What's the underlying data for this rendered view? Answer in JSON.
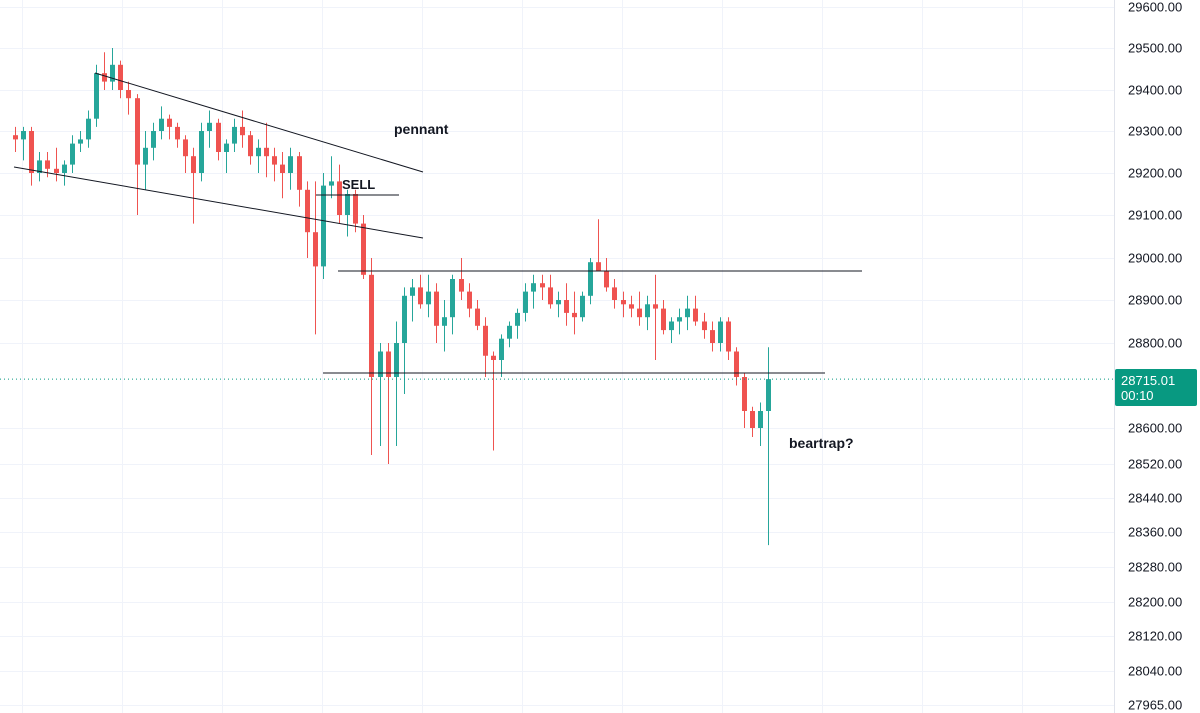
{
  "chart_data": {
    "type": "candlestick",
    "ylim": [
      27965,
      29600
    ],
    "y_ticks": [
      "29600.00",
      "29500.00",
      "29400.00",
      "29300.00",
      "29200.00",
      "29100.00",
      "29000.00",
      "28900.00",
      "28800.00",
      "28600.00",
      "28520.00",
      "28440.00",
      "28360.00",
      "28280.00",
      "28200.00",
      "28120.00",
      "28040.00",
      "27965.00"
    ],
    "grid": true,
    "colors": {
      "up": "#26a69a",
      "down": "#ef5350",
      "grid": "#f0f3fa",
      "axis_border": "#e0e3eb",
      "line": "#131722",
      "current_price": "#089981"
    },
    "current_price": {
      "value": 28715.01,
      "label": "28715.01",
      "countdown": "00:10"
    },
    "candles": [
      [
        29290,
        29310,
        29250,
        29280
      ],
      [
        29280,
        29310,
        29230,
        29300
      ],
      [
        29300,
        29310,
        29170,
        29200
      ],
      [
        29200,
        29250,
        29180,
        29230
      ],
      [
        29230,
        29250,
        29190,
        29210
      ],
      [
        29210,
        29260,
        29180,
        29200
      ],
      [
        29200,
        29230,
        29170,
        29220
      ],
      [
        29220,
        29290,
        29200,
        29270
      ],
      [
        29270,
        29300,
        29250,
        29280
      ],
      [
        29280,
        29350,
        29260,
        29330
      ],
      [
        29330,
        29460,
        29310,
        29440
      ],
      [
        29440,
        29490,
        29400,
        29420
      ],
      [
        29420,
        29500,
        29400,
        29460
      ],
      [
        29460,
        29470,
        29380,
        29400
      ],
      [
        29400,
        29420,
        29340,
        29380
      ],
      [
        29380,
        29390,
        29100,
        29220
      ],
      [
        29220,
        29300,
        29160,
        29260
      ],
      [
        29260,
        29320,
        29230,
        29300
      ],
      [
        29300,
        29360,
        29280,
        29330
      ],
      [
        29330,
        29340,
        29280,
        29310
      ],
      [
        29310,
        29320,
        29260,
        29280
      ],
      [
        29280,
        29290,
        29200,
        29240
      ],
      [
        29240,
        29260,
        29080,
        29200
      ],
      [
        29200,
        29320,
        29180,
        29300
      ],
      [
        29300,
        29350,
        29260,
        29320
      ],
      [
        29320,
        29330,
        29230,
        29250
      ],
      [
        29250,
        29280,
        29200,
        29270
      ],
      [
        29270,
        29330,
        29250,
        29310
      ],
      [
        29310,
        29350,
        29260,
        29290
      ],
      [
        29290,
        29300,
        29220,
        29240
      ],
      [
        29240,
        29280,
        29200,
        29260
      ],
      [
        29260,
        29320,
        29190,
        29240
      ],
      [
        29240,
        29260,
        29180,
        29220
      ],
      [
        29220,
        29250,
        29140,
        29200
      ],
      [
        29200,
        29260,
        29160,
        29240
      ],
      [
        29240,
        29250,
        29120,
        29160
      ],
      [
        29160,
        29180,
        29000,
        29060
      ],
      [
        29060,
        29180,
        28820,
        28980
      ],
      [
        28980,
        29200,
        28950,
        29170
      ],
      [
        29170,
        29240,
        29140,
        29180
      ],
      [
        29180,
        29220,
        29080,
        29100
      ],
      [
        29100,
        29160,
        29050,
        29150
      ],
      [
        29150,
        29160,
        29060,
        29080
      ],
      [
        29080,
        29100,
        28950,
        28960
      ],
      [
        28960,
        29000,
        28540,
        28720
      ],
      [
        28720,
        28800,
        28560,
        28780
      ],
      [
        28780,
        28800,
        28520,
        28720
      ],
      [
        28720,
        28850,
        28560,
        28800
      ],
      [
        28800,
        28930,
        28680,
        28910
      ],
      [
        28910,
        28950,
        28850,
        28930
      ],
      [
        28930,
        28960,
        28880,
        28890
      ],
      [
        28890,
        28960,
        28860,
        28920
      ],
      [
        28920,
        28940,
        28800,
        28840
      ],
      [
        28840,
        28900,
        28780,
        28860
      ],
      [
        28860,
        28960,
        28820,
        28950
      ],
      [
        28950,
        29000,
        28900,
        28920
      ],
      [
        28920,
        28940,
        28860,
        28880
      ],
      [
        28880,
        28900,
        28830,
        28840
      ],
      [
        28840,
        28860,
        28720,
        28770
      ],
      [
        28770,
        28780,
        28550,
        28760
      ],
      [
        28760,
        28820,
        28720,
        28810
      ],
      [
        28810,
        28850,
        28790,
        28840
      ],
      [
        28840,
        28880,
        28810,
        28870
      ],
      [
        28870,
        28940,
        28850,
        28920
      ],
      [
        28920,
        28960,
        28880,
        28940
      ],
      [
        28940,
        28960,
        28900,
        28930
      ],
      [
        28930,
        28960,
        28880,
        28890
      ],
      [
        28890,
        28920,
        28860,
        28900
      ],
      [
        28900,
        28940,
        28840,
        28870
      ],
      [
        28870,
        28920,
        28820,
        28860
      ],
      [
        28860,
        28920,
        28850,
        28910
      ],
      [
        28910,
        29000,
        28890,
        28990
      ],
      [
        28990,
        29090,
        28970,
        28970
      ],
      [
        28970,
        29000,
        28920,
        28930
      ],
      [
        28930,
        28950,
        28880,
        28900
      ],
      [
        28900,
        28920,
        28860,
        28890
      ],
      [
        28890,
        28910,
        28860,
        28880
      ],
      [
        28880,
        28920,
        28840,
        28860
      ],
      [
        28860,
        28910,
        28830,
        28890
      ],
      [
        28890,
        28960,
        28760,
        28880
      ],
      [
        28880,
        28900,
        28820,
        28830
      ],
      [
        28830,
        28860,
        28800,
        28850
      ],
      [
        28850,
        28880,
        28820,
        28860
      ],
      [
        28860,
        28910,
        28830,
        28880
      ],
      [
        28880,
        28910,
        28840,
        28850
      ],
      [
        28850,
        28870,
        28810,
        28830
      ],
      [
        28830,
        28850,
        28780,
        28800
      ],
      [
        28800,
        28860,
        28780,
        28850
      ],
      [
        28850,
        28860,
        28760,
        28780
      ],
      [
        28780,
        28790,
        28700,
        28720
      ],
      [
        28720,
        28730,
        28600,
        28640
      ],
      [
        28640,
        28650,
        28580,
        28600
      ],
      [
        28600,
        28660,
        28560,
        28640
      ],
      [
        28640,
        28790,
        28330,
        28715
      ]
    ]
  },
  "annotations": {
    "pennant": "pennant",
    "sell": "SELL",
    "beartrap": "beartrap?"
  }
}
